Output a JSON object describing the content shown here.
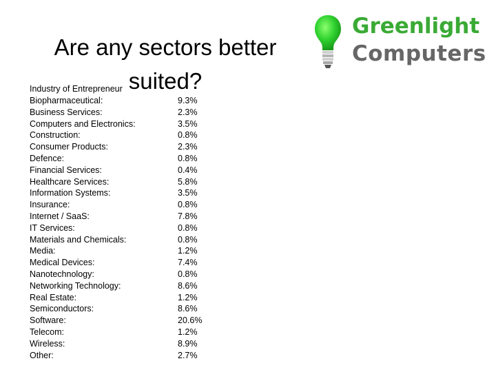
{
  "slide": {
    "title_line1": "Are any sectors better",
    "title_line2": "suited?"
  },
  "logo": {
    "line1": "Greenlight",
    "line2": "Computers",
    "colors": {
      "green": "#3aaa35",
      "grey": "#666666",
      "bulb": "#2fd12f"
    },
    "icon": "lightbulb-icon"
  },
  "table": {
    "heading": "Industry of Entrepreneur",
    "rows": [
      {
        "sector": "Biopharmaceutical:",
        "pct": "9.3%"
      },
      {
        "sector": "Business Services:",
        "pct": "2.3%"
      },
      {
        "sector": "Computers and Electronics:",
        "pct": "3.5%"
      },
      {
        "sector": "Construction:",
        "pct": "0.8%"
      },
      {
        "sector": "Consumer Products:",
        "pct": "2.3%"
      },
      {
        "sector": "Defence:",
        "pct": "0.8%"
      },
      {
        "sector": "Financial Services:",
        "pct": "0.4%"
      },
      {
        "sector": "Healthcare Services:",
        "pct": "5.8%"
      },
      {
        "sector": "Information Systems:",
        "pct": "3.5%"
      },
      {
        "sector": "Insurance:",
        "pct": "0.8%"
      },
      {
        "sector": "Internet / SaaS:",
        "pct": "7.8%"
      },
      {
        "sector": "IT Services:",
        "pct": "0.8%"
      },
      {
        "sector": "Materials and Chemicals:",
        "pct": "0.8%"
      },
      {
        "sector": "Media:",
        "pct": "1.2%"
      },
      {
        "sector": "Medical Devices:",
        "pct": "7.4%"
      },
      {
        "sector": "Nanotechnology:",
        "pct": "0.8%"
      },
      {
        "sector": "Networking Technology:",
        "pct": "8.6%"
      },
      {
        "sector": "Real Estate:",
        "pct": "1.2%"
      },
      {
        "sector": "Semiconductors:",
        "pct": "8.6%"
      },
      {
        "sector": "Software:",
        "pct": "20.6%"
      },
      {
        "sector": "Telecom:",
        "pct": "1.2%"
      },
      {
        "sector": "Wireless:",
        "pct": "8.9%"
      },
      {
        "sector": "Other:",
        "pct": "2.7%"
      }
    ]
  }
}
